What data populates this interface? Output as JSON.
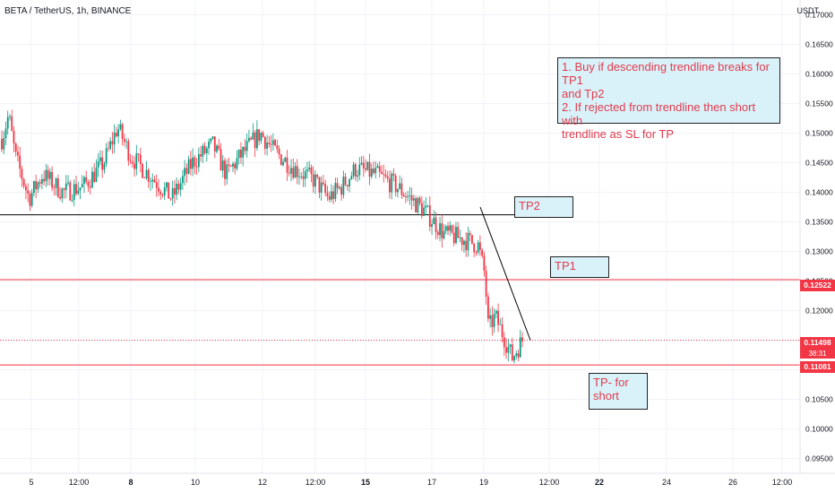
{
  "header": {
    "symbol_line": "BETA / TetherUS, 1h, BINANCE",
    "currency": "USDT"
  },
  "chart_data": {
    "type": "candlestick",
    "ylim": [
      0.0925,
      0.1725
    ],
    "y_ticks": [
      "0.17000",
      "0.16500",
      "0.16000",
      "0.15500",
      "0.15000",
      "0.14500",
      "0.14000",
      "0.13500",
      "0.13000",
      "0.12500",
      "0.12000",
      "0.11500",
      "0.11000",
      "0.10500",
      "0.10000",
      "0.09500"
    ],
    "x_ticks": [
      {
        "label": "5",
        "bold": false
      },
      {
        "label": "12:00",
        "bold": false
      },
      {
        "label": "8",
        "bold": true
      },
      {
        "label": "10",
        "bold": false
      },
      {
        "label": "12",
        "bold": false
      },
      {
        "label": "12:00",
        "bold": false
      },
      {
        "label": "15",
        "bold": true
      },
      {
        "label": "17",
        "bold": false
      },
      {
        "label": "19",
        "bold": false
      },
      {
        "label": "12:00",
        "bold": false
      },
      {
        "label": "22",
        "bold": true
      },
      {
        "label": "24",
        "bold": false
      },
      {
        "label": "26",
        "bold": false
      },
      {
        "label": "12:00",
        "bold": false
      }
    ],
    "price_path": [
      {
        "t": 0,
        "p": 0.149
      },
      {
        "t": 2,
        "p": 0.153
      },
      {
        "t": 4,
        "p": 0.146
      },
      {
        "t": 8,
        "p": 0.139
      },
      {
        "t": 12,
        "p": 0.143
      },
      {
        "t": 18,
        "p": 0.14
      },
      {
        "t": 24,
        "p": 0.141
      },
      {
        "t": 30,
        "p": 0.145
      },
      {
        "t": 34,
        "p": 0.151
      },
      {
        "t": 38,
        "p": 0.146
      },
      {
        "t": 45,
        "p": 0.142
      },
      {
        "t": 50,
        "p": 0.139
      },
      {
        "t": 56,
        "p": 0.145
      },
      {
        "t": 62,
        "p": 0.148
      },
      {
        "t": 66,
        "p": 0.143
      },
      {
        "t": 70,
        "p": 0.146
      },
      {
        "t": 76,
        "p": 0.15
      },
      {
        "t": 80,
        "p": 0.147
      },
      {
        "t": 86,
        "p": 0.144
      },
      {
        "t": 92,
        "p": 0.142
      },
      {
        "t": 96,
        "p": 0.139
      },
      {
        "t": 100,
        "p": 0.141
      },
      {
        "t": 104,
        "p": 0.144
      },
      {
        "t": 110,
        "p": 0.143
      },
      {
        "t": 116,
        "p": 0.141
      },
      {
        "t": 124,
        "p": 0.137
      },
      {
        "t": 130,
        "p": 0.133
      },
      {
        "t": 136,
        "p": 0.132
      },
      {
        "t": 140,
        "p": 0.131
      },
      {
        "t": 142,
        "p": 0.126
      },
      {
        "t": 143,
        "p": 0.117
      },
      {
        "t": 145,
        "p": 0.119
      },
      {
        "t": 148,
        "p": 0.115
      },
      {
        "t": 150,
        "p": 0.112
      },
      {
        "t": 153,
        "p": 0.115
      }
    ],
    "horizontal_levels": [
      {
        "price": 0.1362,
        "color": "#000000",
        "style": "solid"
      },
      {
        "price": 0.12522,
        "color": "#f23645",
        "style": "solid"
      },
      {
        "price": 0.11498,
        "color": "#f23645",
        "style": "dotted"
      },
      {
        "price": 0.11081,
        "color": "#f23645",
        "style": "solid"
      }
    ],
    "trendline": {
      "from": {
        "price": 0.1375
      },
      "to": {
        "price": 0.115
      }
    },
    "up_color": "#089981",
    "down_color": "#f23645"
  },
  "price_badges": {
    "level_1": {
      "label": "0.12522",
      "color": "#f23645"
    },
    "last": {
      "label": "0.11498",
      "color": "#f23645"
    },
    "countdown": "38:31",
    "level_2": {
      "label": "0.11081",
      "color": "#f23645"
    }
  },
  "annotations": {
    "main_note": "1. Buy if descending trendline breaks for TP1\nand Tp2\n2. If rejected from trendline then short with\ntrendline as SL for TP",
    "tp2": "TP2",
    "tp1": "TP1",
    "tp_short": "TP- for\nshort"
  }
}
